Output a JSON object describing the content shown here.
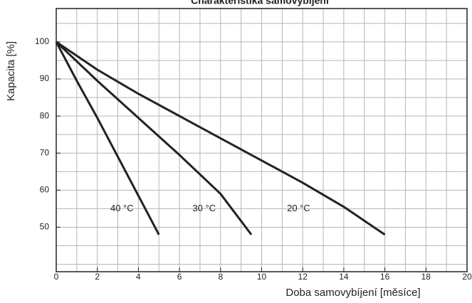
{
  "chart_data": {
    "type": "line",
    "title": "Charakteristika samovybíjení",
    "x_label": "Doba samovybíjení [měsíce]",
    "y_label": "Kapacita [%]",
    "series": [
      {
        "name": "40 °C",
        "color": "#222222",
        "x": [
          0,
          1,
          2,
          3,
          4,
          5
        ],
        "values": [
          100,
          89.5,
          79.5,
          69,
          58.5,
          48
        ]
      },
      {
        "name": "30 °C",
        "color": "#222222",
        "x": [
          0,
          2,
          4,
          6,
          8,
          9.5
        ],
        "values": [
          100,
          89.5,
          79.5,
          69.5,
          59,
          48
        ]
      },
      {
        "name": "20 °C",
        "color": "#222222",
        "x": [
          0,
          2,
          4,
          6,
          8,
          10,
          12,
          14,
          16
        ],
        "values": [
          100,
          92.5,
          86,
          80,
          74,
          68,
          62,
          55.5,
          48
        ]
      }
    ],
    "annotations": [
      {
        "text": "40 °C",
        "x": 3.2,
        "y": 55
      },
      {
        "text": "30 °C",
        "x": 7.2,
        "y": 55
      },
      {
        "text": "20 °C",
        "x": 11.8,
        "y": 55
      }
    ],
    "xlim": [
      0,
      20
    ],
    "ylim": [
      38,
      109
    ],
    "xticks": [
      0,
      2,
      4,
      6,
      8,
      10,
      12,
      14,
      16,
      18,
      20
    ],
    "yticks": [
      50,
      60,
      70,
      80,
      90,
      100
    ],
    "xminorticks": [
      1,
      3,
      5,
      7,
      9,
      11,
      13,
      15,
      17,
      19
    ],
    "yminorticks": [
      40,
      45,
      55,
      65,
      75,
      85,
      95,
      105
    ],
    "grid": true
  }
}
